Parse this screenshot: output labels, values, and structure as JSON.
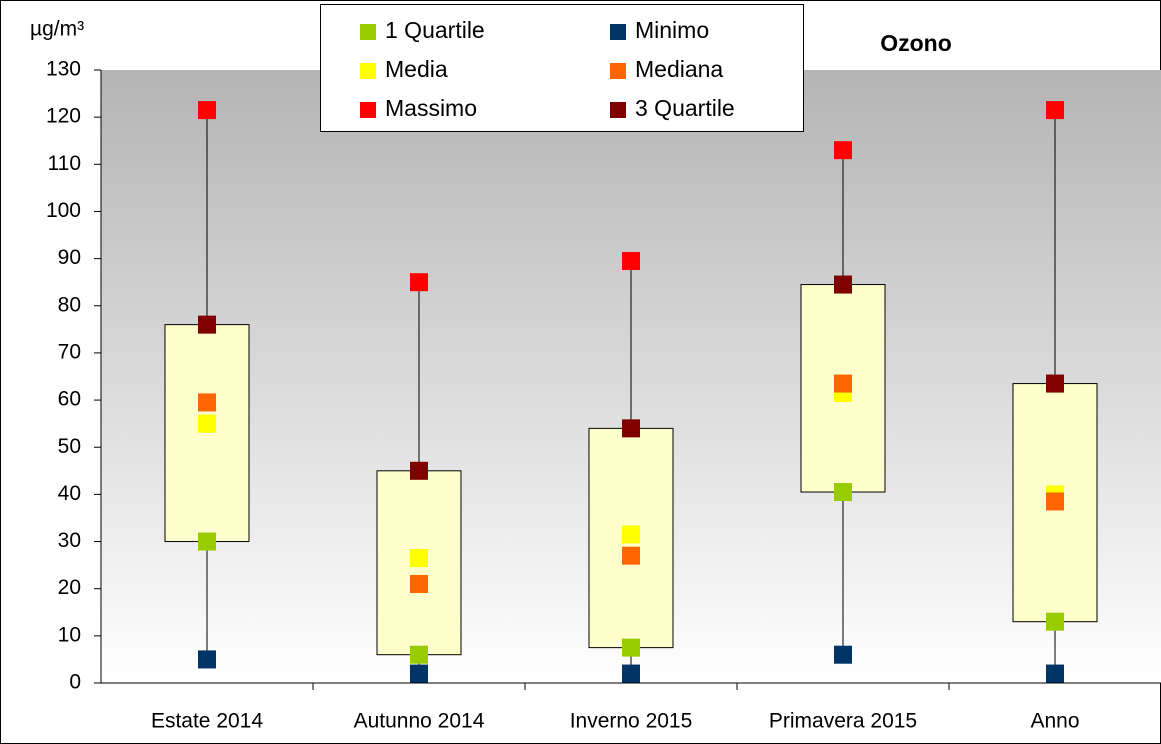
{
  "chart_data": {
    "type": "boxplot",
    "title": "Ozono",
    "y_label": "µg/m³",
    "categories": [
      "Estate 2014",
      "Autunno 2014",
      "Inverno 2015",
      "Primavera 2015",
      "Anno"
    ],
    "series": [
      {
        "name": "1 Quartile",
        "color": "#99cc00",
        "values": [
          30,
          6,
          7.5,
          40.5,
          13
        ]
      },
      {
        "name": "Minimo",
        "color": "#003366",
        "values": [
          5,
          2,
          2,
          6,
          2
        ]
      },
      {
        "name": "Media",
        "color": "#ffff00",
        "values": [
          55,
          26.5,
          31.5,
          61.5,
          40
        ]
      },
      {
        "name": "Mediana",
        "color": "#ff6600",
        "values": [
          59.5,
          21,
          27,
          63.5,
          38.5
        ]
      },
      {
        "name": "Massimo",
        "color": "#ff0000",
        "values": [
          121.5,
          85,
          89.5,
          113,
          121.5
        ]
      },
      {
        "name": "3 Quartile",
        "color": "#800000",
        "values": [
          76,
          45,
          54,
          84.5,
          63.5
        ]
      }
    ],
    "box_color": "#ffffcc",
    "ylim": [
      0,
      130
    ],
    "yticks": [
      0,
      10,
      20,
      30,
      40,
      50,
      60,
      70,
      80,
      90,
      100,
      110,
      120,
      130
    ],
    "grid": false
  }
}
